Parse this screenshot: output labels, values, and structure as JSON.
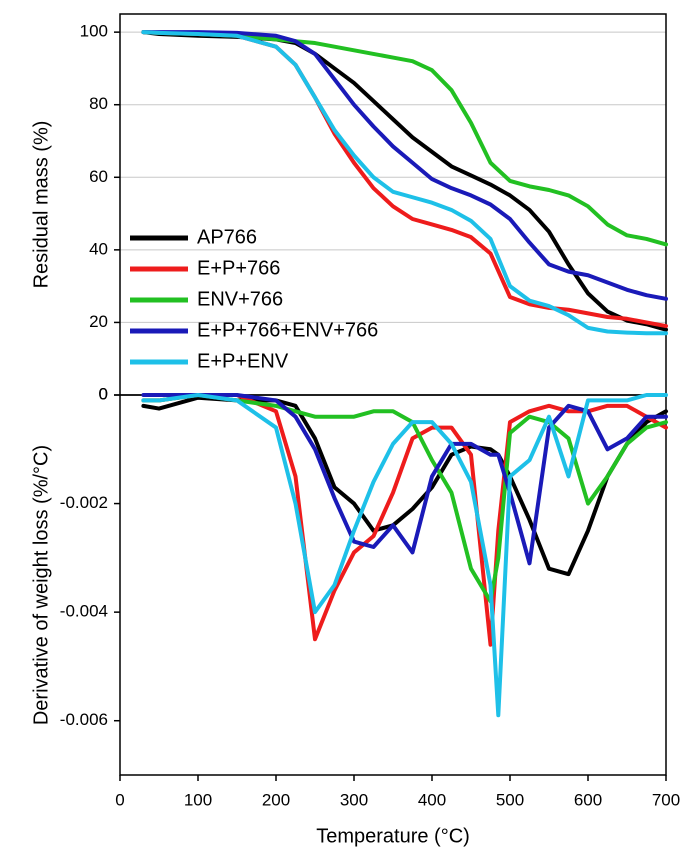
{
  "chart_data": [
    {
      "type": "line",
      "ylabel": "Residual mass (%)",
      "x": [
        30,
        50,
        100,
        150,
        200,
        225,
        250,
        275,
        300,
        325,
        350,
        375,
        400,
        425,
        450,
        475,
        500,
        525,
        550,
        575,
        600,
        625,
        650,
        675,
        700
      ],
      "xlim": [
        0,
        700
      ],
      "ylim": [
        0,
        105
      ],
      "yticks": [
        0,
        20,
        40,
        60,
        80,
        100
      ],
      "grid": true,
      "legend": "lower left",
      "series": [
        {
          "name": "AP766",
          "color": "#000000",
          "values": [
            100,
            99.5,
            99,
            98.7,
            98,
            97,
            94,
            90,
            86,
            81,
            76,
            71,
            67,
            63,
            60.5,
            58,
            55,
            51,
            45,
            36,
            28,
            23,
            20.5,
            19.5,
            18
          ]
        },
        {
          "name": "E+P+766",
          "color": "#ee1c1c",
          "values": [
            100,
            99.8,
            99.5,
            99,
            96,
            91,
            82,
            72,
            64,
            57,
            52,
            48.5,
            47,
            45.5,
            43.5,
            39,
            27,
            25,
            24,
            23.5,
            22.5,
            21.5,
            21,
            20,
            19
          ]
        },
        {
          "name": "ENV+766",
          "color": "#22c022",
          "values": [
            100,
            99.8,
            99.5,
            99,
            98,
            97.5,
            97,
            96,
            95,
            94,
            93,
            92,
            89.5,
            84,
            75,
            64,
            59,
            57.5,
            56.5,
            55,
            52,
            47,
            44,
            43,
            41.5
          ]
        },
        {
          "name": "E+P+766+ENV+766",
          "color": "#1a1ab8",
          "values": [
            100,
            100,
            100,
            99.8,
            99,
            97.5,
            94,
            87,
            80,
            74,
            68.5,
            64,
            59.5,
            57,
            55,
            52.5,
            48.5,
            42,
            36,
            34,
            33,
            31,
            29,
            27.5,
            26.5
          ]
        },
        {
          "name": "E+P+ENV",
          "color": "#1ec0e8",
          "values": [
            100,
            99.8,
            99.5,
            99,
            96,
            91,
            82,
            73,
            66,
            60,
            56,
            54.5,
            53,
            51,
            48,
            43,
            30,
            26,
            24.5,
            22,
            18.5,
            17.5,
            17.2,
            17,
            17
          ]
        }
      ]
    },
    {
      "type": "line",
      "ylabel": "Derivative of weight loss (%/°C)",
      "xlabel": "Temperature (°C)",
      "x": [
        30,
        50,
        100,
        150,
        200,
        225,
        250,
        275,
        300,
        325,
        350,
        375,
        400,
        425,
        450,
        475,
        485,
        500,
        525,
        550,
        575,
        600,
        625,
        650,
        675,
        700
      ],
      "xlim": [
        0,
        700
      ],
      "xticks": [
        0,
        100,
        200,
        300,
        400,
        500,
        600,
        700
      ],
      "ylim": [
        -0.007,
        0
      ],
      "yticks": [
        0,
        -0.002,
        -0.004,
        -0.006
      ],
      "grid": false,
      "series": [
        {
          "name": "AP766",
          "color": "#000000",
          "values": [
            -0.0002,
            -0.00025,
            -5e-05,
            -0.0001,
            -0.0001,
            -0.0002,
            -0.0008,
            -0.0017,
            -0.002,
            -0.0025,
            -0.0024,
            -0.0021,
            -0.0017,
            -0.0011,
            -0.00095,
            -0.001,
            -0.0011,
            -0.0015,
            -0.0023,
            -0.0032,
            -0.0033,
            -0.0025,
            -0.0015,
            -0.0009,
            -0.0005,
            -0.0003
          ]
        },
        {
          "name": "E+P+766",
          "color": "#ee1c1c",
          "values": [
            -0.0001,
            -0.0001,
            0,
            0,
            -0.0003,
            -0.0015,
            -0.0045,
            -0.0036,
            -0.0029,
            -0.0026,
            -0.0018,
            -0.0008,
            -0.0006,
            -0.0006,
            -0.0011,
            -0.0046,
            -0.0025,
            -0.0005,
            -0.0003,
            -0.0002,
            -0.0003,
            -0.0003,
            -0.0002,
            -0.0002,
            -0.0004,
            -0.0006
          ]
        },
        {
          "name": "ENV+766",
          "color": "#22c022",
          "values": [
            -0.0001,
            -0.0001,
            0,
            -0.0001,
            -0.0002,
            -0.0003,
            -0.0004,
            -0.0004,
            -0.0004,
            -0.0003,
            -0.0003,
            -0.0005,
            -0.0012,
            -0.0018,
            -0.0032,
            -0.0038,
            -0.003,
            -0.0007,
            -0.0004,
            -0.0005,
            -0.0008,
            -0.002,
            -0.0015,
            -0.0009,
            -0.0006,
            -0.0005
          ]
        },
        {
          "name": "E+P+766+ENV+766",
          "color": "#1a1ab8",
          "values": [
            0,
            0,
            0,
            0,
            -0.0001,
            -0.0004,
            -0.001,
            -0.0019,
            -0.0027,
            -0.0028,
            -0.0024,
            -0.0029,
            -0.0015,
            -0.0009,
            -0.0009,
            -0.0011,
            -0.0011,
            -0.0018,
            -0.0031,
            -0.0006,
            -0.0002,
            -0.0003,
            -0.001,
            -0.0008,
            -0.0004,
            -0.0004
          ]
        },
        {
          "name": "E+P+ENV",
          "color": "#1ec0e8",
          "values": [
            -0.0001,
            -0.0001,
            0,
            -0.0001,
            -0.0006,
            -0.002,
            -0.004,
            -0.0035,
            -0.0025,
            -0.0016,
            -0.0009,
            -0.0005,
            -0.0005,
            -0.0009,
            -0.0016,
            -0.0035,
            -0.0059,
            -0.0015,
            -0.0012,
            -0.0004,
            -0.0015,
            -0.0001,
            -0.0001,
            -0.0001,
            0,
            0
          ]
        }
      ]
    }
  ]
}
